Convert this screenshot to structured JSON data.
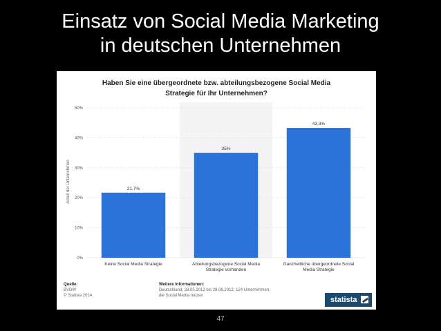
{
  "slide": {
    "title_line1": "Einsatz von Social Media Marketing",
    "title_line2": "in deutschen Unternehmen",
    "page_number": "47"
  },
  "chart_data": {
    "type": "bar",
    "title_line1": "Haben Sie eine übergeordnete bzw. abteilungsbezogene Social Media",
    "title_line2": "Strategie für Ihr Unternehmen?",
    "ylabel": "Anteil der Unternehmen",
    "xlabel": "",
    "categories": [
      [
        "Keine Social Media Strategie"
      ],
      [
        "Abteilungsbezogene Social Media",
        "Strategie vorhanden"
      ],
      [
        "Ganzheitliche übergeordnete Social",
        "Media Strategie"
      ]
    ],
    "values": [
      21.7,
      35,
      43.3
    ],
    "value_labels": [
      "21,7%",
      "35%",
      "43,3%"
    ],
    "yticks": [
      0,
      10,
      20,
      30,
      40,
      50
    ],
    "ytick_labels": [
      "0%",
      "10%",
      "20%",
      "30%",
      "40%",
      "50%"
    ],
    "ylim": [
      0,
      50
    ],
    "bar_color": "#2b73d9",
    "grid": true,
    "legend": "none"
  },
  "footer": {
    "source_title": "Quelle:",
    "source_lines": [
      "BVDW",
      "© Statista 2014"
    ],
    "info_title": "Weitere Informationen:",
    "info_lines": [
      "Deutschland; 28.05.2012 bis 28.06.2012; 124 Unternehmen,",
      "die Social Media nutzen"
    ],
    "brand": "statista",
    "brand_color": "#1c4a6e"
  }
}
